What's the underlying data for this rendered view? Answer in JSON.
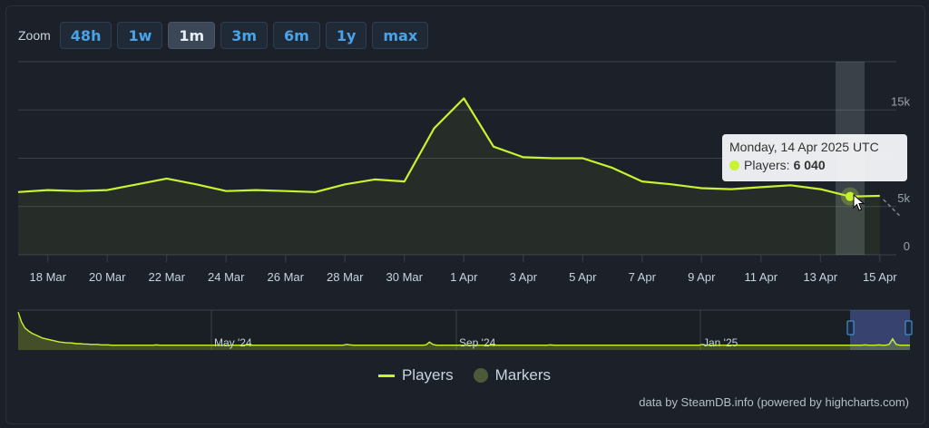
{
  "zoom": {
    "label": "Zoom",
    "buttons": [
      "48h",
      "1w",
      "1m",
      "3m",
      "6m",
      "1y",
      "max"
    ],
    "active": "1m"
  },
  "tooltip": {
    "date": "Monday, 14 Apr 2025 UTC",
    "series_label": "Players:",
    "value": "6 040"
  },
  "legend": {
    "players": "Players",
    "markers": "Markers"
  },
  "credits": "data by SteamDB.info (powered by highcharts.com)",
  "colors": {
    "line": "#c9f230",
    "background": "#1c2129",
    "grid": "#3a414b"
  },
  "chart_data": {
    "type": "line",
    "x": [
      "17 Mar",
      "18 Mar",
      "19 Mar",
      "20 Mar",
      "21 Mar",
      "22 Mar",
      "23 Mar",
      "24 Mar",
      "25 Mar",
      "26 Mar",
      "27 Mar",
      "28 Mar",
      "29 Mar",
      "30 Mar",
      "31 Mar",
      "1 Apr",
      "2 Apr",
      "3 Apr",
      "4 Apr",
      "5 Apr",
      "6 Apr",
      "7 Apr",
      "8 Apr",
      "9 Apr",
      "10 Apr",
      "11 Apr",
      "12 Apr",
      "13 Apr",
      "14 Apr",
      "15 Apr"
    ],
    "series": [
      {
        "name": "Players",
        "values": [
          6500,
          6700,
          6600,
          6700,
          7300,
          7900,
          7300,
          6600,
          6700,
          6600,
          6500,
          7300,
          7800,
          7600,
          13100,
          16200,
          11200,
          10100,
          10000,
          10000,
          9000,
          7600,
          7300,
          6900,
          6800,
          7000,
          7200,
          6800,
          6040,
          6100
        ]
      }
    ],
    "x_ticks": [
      "18 Mar",
      "20 Mar",
      "22 Mar",
      "24 Mar",
      "26 Mar",
      "28 Mar",
      "30 Mar",
      "1 Apr",
      "3 Apr",
      "5 Apr",
      "7 Apr",
      "9 Apr",
      "11 Apr",
      "13 Apr",
      "15 Apr"
    ],
    "y_ticks": [
      "0",
      "5k",
      "15k"
    ],
    "ylim": [
      0,
      20000
    ],
    "navigator": {
      "labels": [
        "May '24",
        "Sep '24",
        "Jan '25"
      ],
      "values": [
        95,
        70,
        55,
        48,
        42,
        38,
        34,
        30,
        28,
        26,
        24,
        22,
        20,
        19,
        18,
        18,
        17,
        16,
        16,
        15,
        15,
        14,
        14,
        14,
        13,
        13,
        13,
        12,
        12,
        12,
        12,
        12,
        12,
        12,
        12,
        12,
        12,
        12,
        12,
        12,
        13,
        12,
        12,
        12,
        12,
        12,
        12,
        12,
        12,
        12,
        12,
        12,
        12,
        12,
        12,
        12,
        12,
        12,
        12,
        12,
        12,
        12,
        12,
        12,
        12,
        12,
        13,
        12,
        12,
        12,
        12,
        12,
        12,
        12,
        12,
        12,
        12,
        12,
        12,
        12,
        12,
        12,
        12,
        12,
        12,
        12,
        12,
        12,
        12,
        12,
        12,
        12,
        12,
        12,
        12,
        14,
        13,
        12,
        12,
        12,
        12,
        12,
        12,
        12,
        12,
        12,
        12,
        12,
        12,
        12,
        12,
        12,
        12,
        12,
        12,
        12,
        12,
        12,
        13,
        20,
        14,
        12,
        12,
        12,
        12,
        12,
        12,
        12,
        12,
        12,
        12,
        12,
        12,
        12,
        12,
        12,
        12,
        12,
        12,
        12,
        12,
        12,
        12,
        12,
        12,
        12,
        12,
        12,
        12,
        12,
        12,
        12,
        12,
        12,
        13,
        12,
        12,
        12,
        12,
        12,
        12,
        12,
        12,
        12,
        12,
        12,
        12,
        12,
        12,
        12,
        12,
        12,
        12,
        12,
        12,
        12,
        12,
        12,
        12,
        12,
        12,
        12,
        12,
        12,
        12,
        12,
        12,
        12,
        12,
        12,
        12,
        12,
        12,
        12,
        12,
        12,
        12,
        12,
        14,
        12,
        12,
        12,
        12,
        12,
        12,
        12,
        12,
        12,
        12,
        12,
        12,
        12,
        12,
        12,
        12,
        12,
        12,
        12,
        12,
        12,
        12,
        12,
        12,
        12,
        12,
        12,
        12,
        12,
        12,
        12,
        12,
        12,
        12,
        12,
        12,
        12,
        12,
        12,
        12,
        12,
        12,
        12,
        12,
        12,
        12,
        13,
        12,
        12,
        12,
        13,
        12,
        12,
        14,
        28,
        14,
        12,
        12,
        12,
        12
      ]
    }
  }
}
